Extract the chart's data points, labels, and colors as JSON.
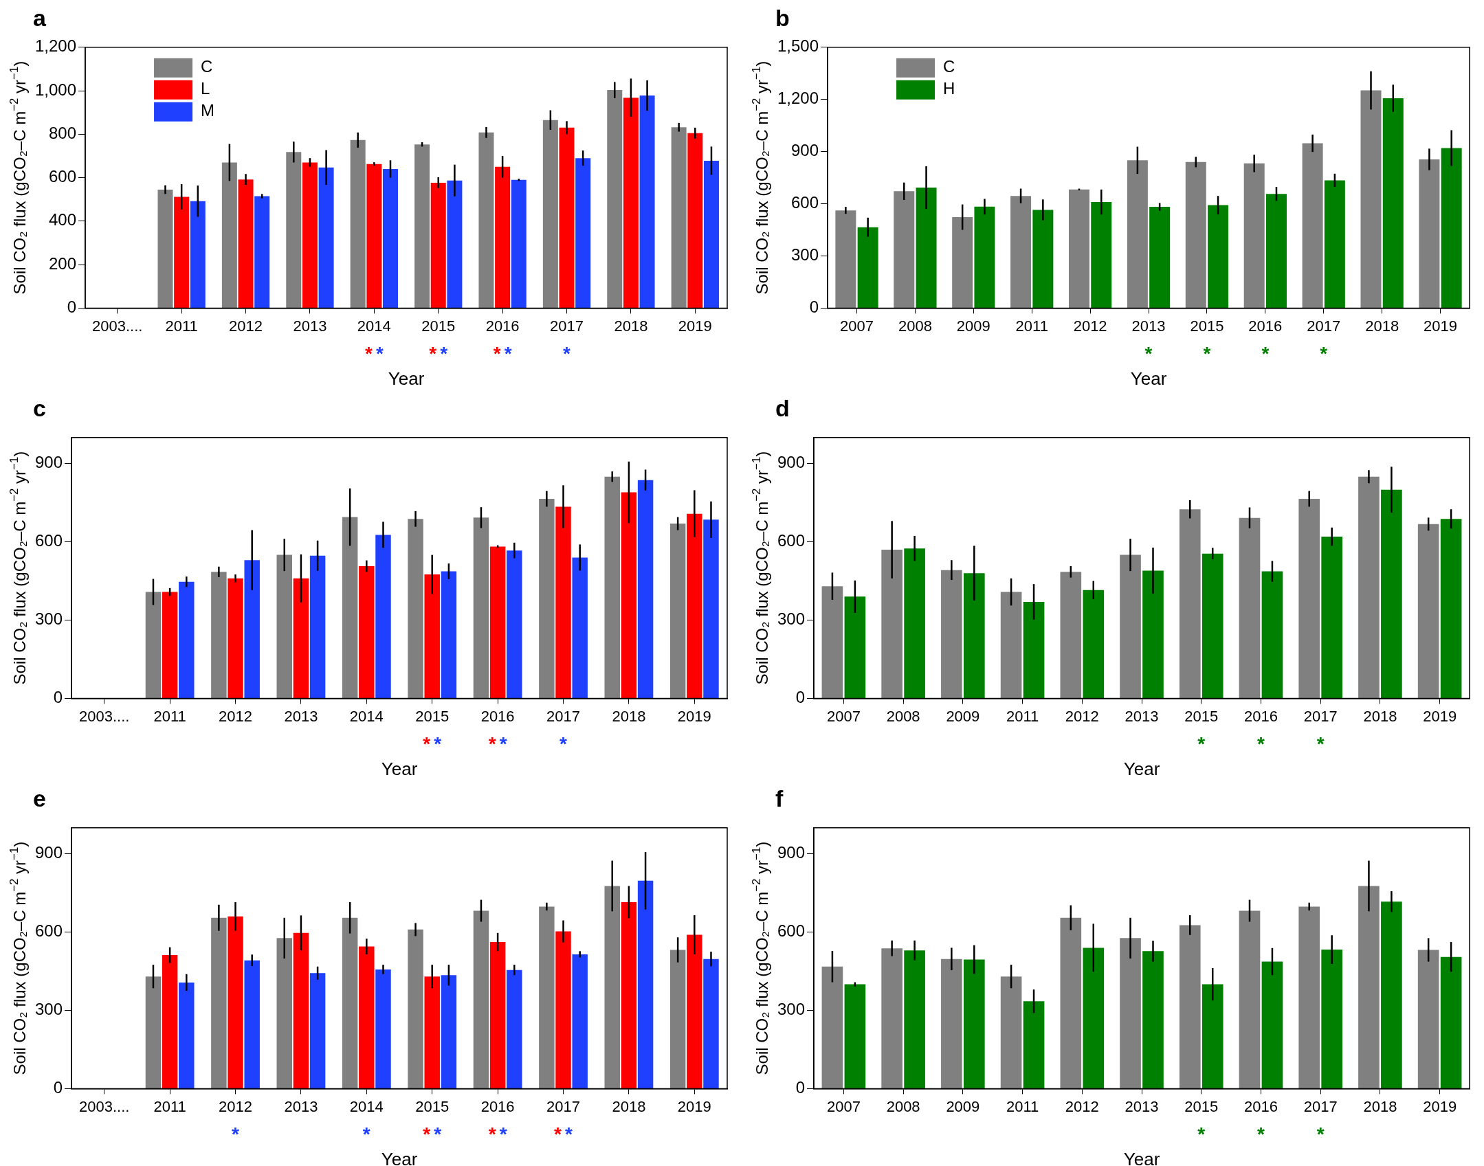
{
  "chart_data": [
    {
      "type": "bar",
      "title": "a",
      "xlabel": "Year",
      "ylabel": "Soil CO₂ flux (gCO₂–C m$^{−2}$ yr$^{−1}$)",
      "legend": "top left",
      "categories": [
        "2003....",
        "2011",
        "2012",
        "2013",
        "2014",
        "2015",
        "2016",
        "2017",
        "2018",
        "2019"
      ],
      "ylim": [
        0,
        1200
      ],
      "yticks": [
        0,
        200,
        400,
        600,
        800,
        {
          "value": 1000,
          "label": "1,000"
        },
        {
          "value": 1200,
          "label": "1,200"
        }
      ],
      "series": [
        {
          "name": "C",
          "color": "#808080",
          "values": [
            null,
            545,
            670,
            718,
            773,
            753,
            808,
            865,
            1003,
            832
          ],
          "errors": [
            null,
            20,
            85,
            48,
            35,
            10,
            25,
            45,
            37,
            20
          ]
        },
        {
          "name": "L",
          "color": "#ff0000",
          "values": [
            null,
            512,
            592,
            670,
            663,
            577,
            650,
            830,
            968,
            805
          ],
          "errors": [
            null,
            58,
            25,
            20,
            8,
            25,
            50,
            30,
            88,
            25
          ],
          "value_labels": [
            null,
            null,
            null,
            null,
            "*",
            "*",
            "*",
            null,
            null,
            null
          ]
        },
        {
          "name": "M",
          "color": "#2040ff",
          "values": [
            null,
            492,
            515,
            647,
            640,
            587,
            590,
            690,
            978,
            678
          ],
          "errors": [
            null,
            72,
            10,
            80,
            40,
            73,
            5,
            35,
            70,
            65
          ],
          "value_labels": [
            null,
            null,
            null,
            null,
            "*",
            "*",
            "*",
            "*",
            null,
            null
          ]
        }
      ]
    },
    {
      "type": "bar",
      "title": "b",
      "xlabel": "Year",
      "ylabel": "Soil CO₂ flux (gCO₂–C m$^{−2}$ yr$^{−1}$)",
      "legend": "top left",
      "categories": [
        "2007",
        "2008",
        "2009",
        "2011",
        "2012",
        "2013",
        "2015",
        "2016",
        "2017",
        "2018",
        "2019"
      ],
      "ylim": [
        0,
        1500
      ],
      "yticks": [
        0,
        300,
        600,
        900,
        {
          "value": 1200,
          "label": "1,200"
        },
        {
          "value": 1500,
          "label": "1,500"
        }
      ],
      "series": [
        {
          "name": "C",
          "color": "#808080",
          "values": [
            562,
            672,
            523,
            645,
            682,
            850,
            840,
            832,
            948,
            1252,
            855
          ],
          "errors": [
            20,
            50,
            73,
            42,
            5,
            78,
            30,
            50,
            50,
            110,
            62
          ]
        },
        {
          "name": "H",
          "color": "#008000",
          "values": [
            465,
            693,
            583,
            565,
            610,
            582,
            592,
            657,
            735,
            1207,
            920
          ],
          "errors": [
            55,
            123,
            45,
            60,
            72,
            22,
            53,
            40,
            38,
            78,
            103
          ],
          "value_labels": [
            null,
            null,
            null,
            null,
            null,
            "*",
            "*",
            "*",
            "*",
            null,
            null
          ]
        }
      ]
    },
    {
      "type": "bar",
      "title": "c",
      "xlabel": "Year",
      "ylabel": "Soil CO₂ flux (gCO₂–C m$^{−2}$ yr$^{−1}$)",
      "categories": [
        "2003....",
        "2011",
        "2012",
        "2013",
        "2014",
        "2015",
        "2016",
        "2017",
        "2018",
        "2019"
      ],
      "ylim": [
        0,
        1000
      ],
      "yticks": [
        0,
        300,
        600,
        900
      ],
      "series": [
        {
          "color": "#808080",
          "values": [
            null,
            408,
            485,
            550,
            695,
            688,
            693,
            765,
            850,
            670
          ],
          "errors": [
            null,
            50,
            20,
            62,
            110,
            30,
            40,
            30,
            20,
            25
          ]
        },
        {
          "color": "#ff0000",
          "values": [
            null,
            408,
            460,
            460,
            507,
            475,
            582,
            735,
            790,
            708
          ],
          "errors": [
            null,
            15,
            15,
            92,
            22,
            75,
            5,
            82,
            118,
            90
          ],
          "value_labels": [
            null,
            null,
            null,
            null,
            null,
            "*",
            "*",
            null,
            null,
            null
          ]
        },
        {
          "color": "#2040ff",
          "values": [
            null,
            447,
            530,
            547,
            627,
            487,
            567,
            540,
            837,
            685
          ],
          "errors": [
            null,
            20,
            115,
            58,
            50,
            30,
            30,
            50,
            40,
            70
          ],
          "value_labels": [
            null,
            null,
            null,
            null,
            null,
            "*",
            "*",
            "*",
            null,
            null
          ]
        }
      ]
    },
    {
      "type": "bar",
      "title": "d",
      "xlabel": "Year",
      "ylabel": "Soil CO₂ flux (gCO₂–C m$^{−2}$ yr$^{−1}$)",
      "categories": [
        "2007",
        "2008",
        "2009",
        "2011",
        "2012",
        "2013",
        "2015",
        "2016",
        "2017",
        "2018",
        "2019"
      ],
      "ylim": [
        0,
        1000
      ],
      "yticks": [
        0,
        300,
        600,
        900
      ],
      "series": [
        {
          "color": "#808080",
          "values": [
            430,
            570,
            492,
            408,
            485,
            550,
            725,
            692,
            765,
            850,
            668
          ],
          "errors": [
            52,
            110,
            38,
            52,
            22,
            62,
            35,
            40,
            30,
            25,
            25
          ]
        },
        {
          "color": "#008000",
          "values": [
            390,
            575,
            480,
            370,
            415,
            490,
            555,
            487,
            620,
            800,
            688
          ],
          "errors": [
            62,
            48,
            105,
            68,
            35,
            88,
            22,
            40,
            35,
            88,
            37
          ],
          "value_labels": [
            null,
            null,
            null,
            null,
            null,
            null,
            "*",
            "*",
            "*",
            null,
            null
          ]
        }
      ]
    },
    {
      "type": "bar",
      "title": "e",
      "xlabel": "Year",
      "ylabel": "Soil CO₂ flux (gCO₂–C m$^{−2}$ yr$^{−1}$)",
      "categories": [
        "2003....",
        "2011",
        "2012",
        "2013",
        "2014",
        "2015",
        "2016",
        "2017",
        "2018",
        "2019"
      ],
      "ylim": [
        0,
        1000
      ],
      "yticks": [
        0,
        300,
        600,
        900
      ],
      "series": [
        {
          "color": "#808080",
          "values": [
            null,
            430,
            655,
            577,
            655,
            610,
            682,
            698,
            777,
            532
          ],
          "errors": [
            null,
            45,
            50,
            78,
            60,
            25,
            42,
            15,
            97,
            48
          ]
        },
        {
          "color": "#ff0000",
          "values": [
            null,
            512,
            660,
            597,
            545,
            430,
            562,
            603,
            715,
            590
          ],
          "errors": [
            null,
            30,
            55,
            67,
            30,
            45,
            35,
            42,
            62,
            75
          ],
          "value_labels": [
            null,
            null,
            null,
            null,
            null,
            "*",
            "*",
            "*",
            null,
            null
          ]
        },
        {
          "color": "#2040ff",
          "values": [
            null,
            407,
            492,
            443,
            457,
            435,
            455,
            515,
            797,
            497
          ],
          "errors": [
            null,
            32,
            22,
            25,
            18,
            40,
            20,
            12,
            110,
            28
          ],
          "value_labels": [
            null,
            null,
            "*",
            null,
            "*",
            "*",
            "*",
            "*",
            null,
            null
          ]
        }
      ]
    },
    {
      "type": "bar",
      "title": "f",
      "xlabel": "Year",
      "ylabel": "Soil CO₂ flux (gCO₂–C m$^{−2}$ yr$^{−1}$)",
      "categories": [
        "2007",
        "2008",
        "2009",
        "2011",
        "2012",
        "2013",
        "2015",
        "2016",
        "2017",
        "2018",
        "2019"
      ],
      "ylim": [
        0,
        1000
      ],
      "yticks": [
        0,
        300,
        600,
        900
      ],
      "series": [
        {
          "color": "#808080",
          "values": [
            468,
            538,
            497,
            430,
            655,
            577,
            627,
            682,
            698,
            777,
            532
          ],
          "errors": [
            60,
            30,
            43,
            45,
            48,
            78,
            38,
            42,
            15,
            97,
            45
          ]
        },
        {
          "color": "#008000",
          "values": [
            400,
            530,
            495,
            335,
            540,
            527,
            400,
            487,
            533,
            717,
            505
          ],
          "errors": [
            8,
            38,
            55,
            45,
            92,
            40,
            62,
            52,
            55,
            40,
            57
          ],
          "value_labels": [
            null,
            null,
            null,
            null,
            null,
            null,
            "*",
            "*",
            "*",
            null,
            null
          ]
        }
      ]
    }
  ]
}
